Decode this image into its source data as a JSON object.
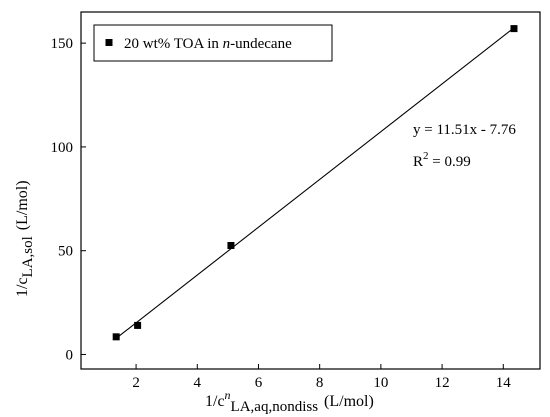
{
  "chart_data": {
    "type": "scatter",
    "xlabel": "1/cnLA,aq,nondiss (L/mol)",
    "xlabel_parts": {
      "prefix": "1/c",
      "sup": "n",
      "sub": "LA,aq,nondiss",
      "unit": "(L/mol)"
    },
    "ylabel": "1/cLA,sol (L/mol)",
    "ylabel_parts": {
      "prefix": "1/c",
      "sub": "LA,sol",
      "unit": "(L/mol)"
    },
    "xlim": [
      0.2,
      15.2
    ],
    "ylim": [
      -7,
      165
    ],
    "x_ticks": [
      2,
      4,
      6,
      8,
      10,
      12,
      14
    ],
    "x_tick_labels": [
      "2",
      "4",
      "6",
      "8",
      "10",
      "12",
      "14"
    ],
    "y_ticks": [
      0,
      50,
      100,
      150
    ],
    "y_tick_labels": [
      "0",
      "50",
      "100",
      "150"
    ],
    "grid": false,
    "legend_position": "top-left",
    "series": [
      {
        "name": "20 wt% TOA in n-undecane",
        "name_parts": {
          "before": "20 wt% TOA in ",
          "italic": "n",
          "after": "-undecane"
        },
        "marker": "square",
        "color": "#000000",
        "x": [
          1.35,
          2.05,
          5.1,
          14.35
        ],
        "y": [
          8.5,
          14,
          52.5,
          157
        ]
      }
    ],
    "fit_line": {
      "slope": 11.51,
      "intercept": -7.76,
      "x_range": [
        1.35,
        14.35
      ],
      "color": "#000000"
    },
    "annotations": {
      "equation": "y = 11.51x - 7.76",
      "r2_prefix": "R",
      "r2_sup": "2",
      "r2_value": " = 0.99"
    }
  }
}
